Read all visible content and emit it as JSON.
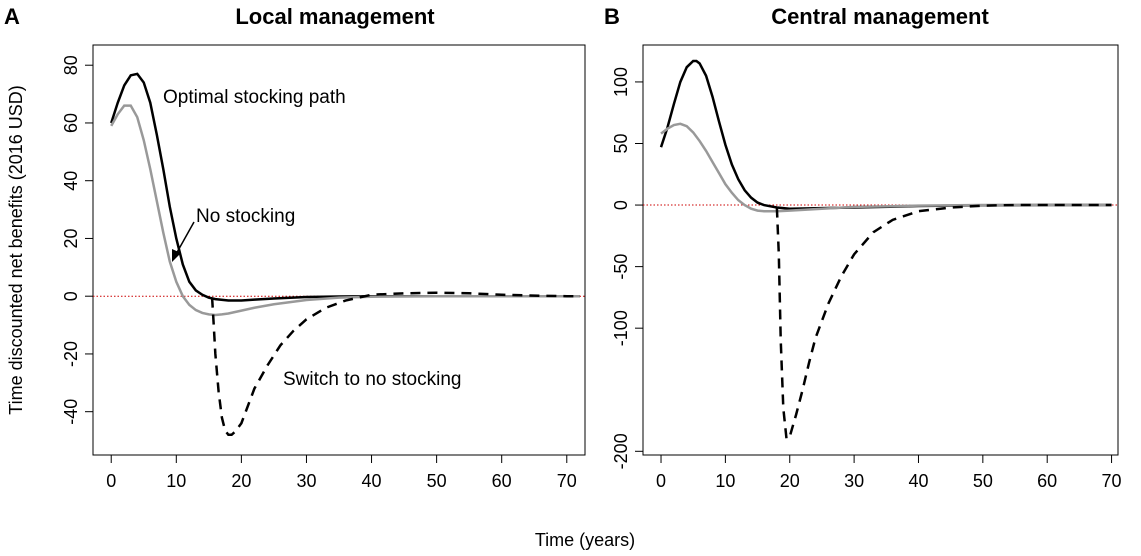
{
  "x_label": "Time (years)",
  "chart_data": [
    {
      "type": "line",
      "panel": "A",
      "title": "Local management",
      "ylabel": "Time discounted net benefits (2016 USD)",
      "xlim": [
        -2.8,
        72.8
      ],
      "xticks": [
        0,
        10,
        20,
        30,
        40,
        50,
        60,
        70
      ],
      "ylim": [
        -55,
        87
      ],
      "yticks": [
        -40,
        -20,
        0,
        20,
        40,
        60,
        80
      ],
      "hline": {
        "value": 0,
        "color": "#cc0000"
      },
      "annotations": [
        "Optimal stocking path",
        "No stocking",
        "Switch to no stocking"
      ],
      "series": [
        {
          "color": "#000000",
          "dash": false,
          "x": [
            0,
            1,
            2,
            3,
            4,
            5,
            6,
            7,
            8,
            9,
            10,
            11,
            12,
            13,
            14,
            15,
            16,
            18,
            20,
            22,
            25,
            30,
            35,
            40,
            50,
            60,
            70,
            72
          ],
          "values": [
            60,
            67,
            73,
            76.5,
            77,
            74,
            67,
            56,
            44,
            31,
            20,
            11,
            5,
            2,
            0.5,
            -0.5,
            -1,
            -1.5,
            -1.5,
            -1.2,
            -0.8,
            -0.3,
            -0.1,
            0,
            0,
            0,
            0,
            0
          ]
        },
        {
          "color": "#999999",
          "dash": false,
          "x": [
            0,
            1,
            2,
            3,
            4,
            5,
            6,
            7,
            8,
            9,
            10,
            11,
            12,
            13,
            14,
            15,
            16,
            17,
            18,
            20,
            22,
            25,
            30,
            35,
            40,
            50,
            60,
            70,
            72
          ],
          "values": [
            59,
            63,
            66,
            66,
            62,
            54,
            44,
            33,
            22,
            12,
            5,
            0,
            -3,
            -4.8,
            -5.8,
            -6.3,
            -6.5,
            -6.3,
            -6,
            -5,
            -4,
            -2.8,
            -1.3,
            -0.5,
            -0.2,
            0,
            0,
            0,
            0
          ]
        },
        {
          "color": "#000000",
          "dash": true,
          "x": [
            15.5,
            15.7,
            16,
            16.5,
            17,
            17.5,
            18,
            18.5,
            19,
            20,
            21,
            22,
            24,
            26,
            28,
            30,
            33,
            36,
            40,
            45,
            50,
            55,
            60,
            65,
            70,
            72
          ],
          "values": [
            -0.5,
            -8,
            -20,
            -33,
            -42,
            -46.5,
            -48,
            -48,
            -47,
            -44,
            -38,
            -32,
            -24,
            -17,
            -12,
            -8,
            -4,
            -1.5,
            0.5,
            1,
            1.2,
            1,
            0.5,
            0.2,
            0,
            0
          ]
        }
      ]
    },
    {
      "type": "line",
      "panel": "B",
      "title": "Central management",
      "xlim": [
        -2.8,
        71
      ],
      "xticks": [
        0,
        10,
        20,
        30,
        40,
        50,
        60,
        70
      ],
      "ylim": [
        -203,
        130
      ],
      "yticks": [
        -200,
        -100,
        -50,
        0,
        50,
        100
      ],
      "hline": {
        "value": 0,
        "color": "#cc0000"
      },
      "series": [
        {
          "color": "#000000",
          "dash": false,
          "x": [
            0,
            1,
            2,
            3,
            4,
            5,
            5.5,
            6,
            7,
            8,
            9,
            10,
            11,
            12,
            13,
            14,
            15,
            16,
            18,
            20,
            25,
            30,
            40,
            50,
            60,
            70,
            72
          ],
          "values": [
            47,
            63,
            82,
            100,
            112,
            117,
            117,
            115,
            105,
            88,
            68,
            49,
            33,
            21,
            12,
            6,
            2,
            0,
            -2,
            -3,
            -2.5,
            -2,
            -0.8,
            -0.2,
            0,
            0,
            0
          ]
        },
        {
          "color": "#999999",
          "dash": false,
          "x": [
            0,
            1,
            2,
            3,
            4,
            5,
            6,
            7,
            8,
            9,
            10,
            11,
            12,
            13,
            14,
            15,
            16,
            18,
            20,
            25,
            30,
            40,
            50,
            60,
            70,
            72
          ],
          "values": [
            58,
            62,
            65,
            66,
            64,
            59,
            52,
            44,
            35,
            26,
            17,
            10,
            4,
            0,
            -3,
            -4.5,
            -5,
            -5,
            -4.5,
            -3,
            -1.5,
            -0.5,
            0,
            0,
            0,
            0
          ]
        },
        {
          "color": "#000000",
          "dash": true,
          "x": [
            18,
            18.3,
            18.6,
            19,
            19.5,
            20,
            21,
            22,
            23,
            24,
            26,
            28,
            30,
            33,
            36,
            40,
            45,
            50,
            55,
            60,
            70,
            72
          ],
          "values": [
            -2,
            -40,
            -110,
            -165,
            -190,
            -188,
            -170,
            -150,
            -128,
            -108,
            -80,
            -58,
            -40,
            -22,
            -12,
            -5,
            -2,
            -0.5,
            0,
            0,
            0,
            0
          ]
        }
      ]
    }
  ]
}
